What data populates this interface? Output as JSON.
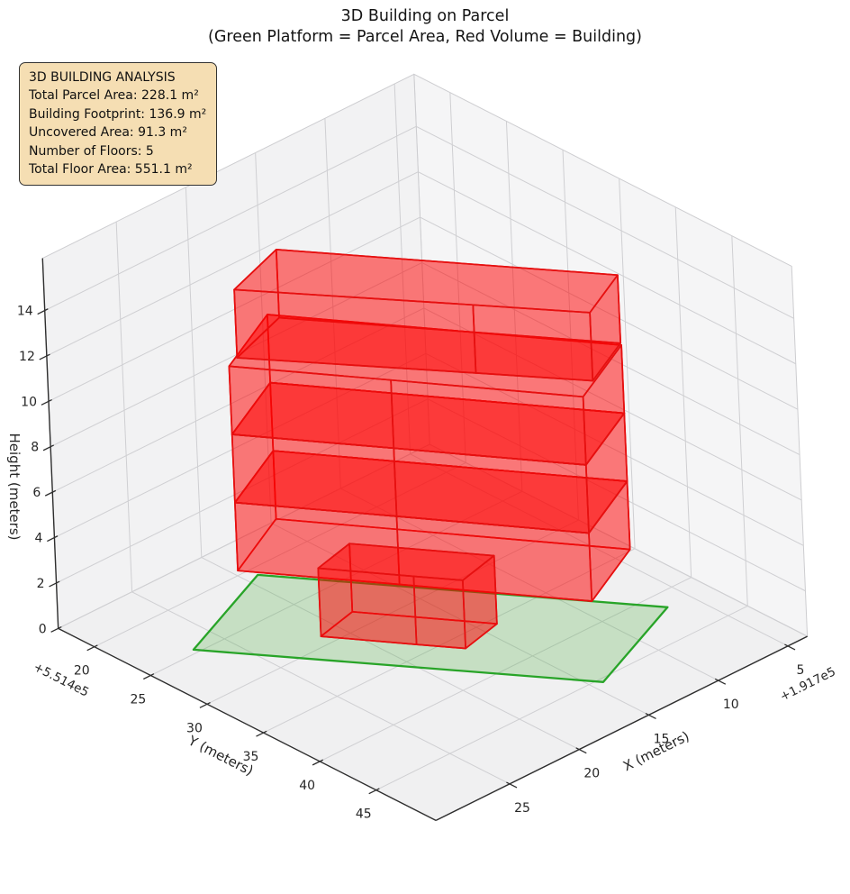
{
  "title": {
    "line1": "3D Building on Parcel",
    "line2": "(Green Platform = Parcel Area, Red Volume = Building)"
  },
  "info_box": {
    "lines": [
      "3D BUILDING ANALYSIS",
      "Total Parcel Area: 228.1 m²",
      "Building Footprint: 136.9 m²",
      "Uncovered Area: 91.3 m²",
      "Number of Floors: 5",
      "Total Floor Area: 551.1 m²"
    ]
  },
  "chart_data": {
    "type": "3d-building-plot",
    "projection": "orthographic, elevated oblique view",
    "axes": {
      "x": {
        "label": "X (meters)",
        "ticks": [
          5,
          10,
          15,
          20,
          25
        ],
        "offset_text": "+1.917e5",
        "range": [
          3.6,
          30.3
        ]
      },
      "y": {
        "label": "Y (meters)",
        "ticks": [
          20,
          25,
          30,
          35,
          40,
          45
        ],
        "offset_text": "+5.514e5",
        "range": [
          16.8,
          50.3
        ]
      },
      "z": {
        "label": "Height (meters)",
        "ticks": [
          0,
          2,
          4,
          6,
          8,
          10,
          12,
          14
        ],
        "range": [
          0,
          16.3
        ]
      }
    },
    "parcel": {
      "z": 0,
      "area_m2": 228.1,
      "polygon": [
        [
          19.2,
          20.8
        ],
        [
          6.6,
          41.6
        ],
        [
          14.3,
          45.4
        ],
        [
          26.9,
          24.6
        ]
      ]
    },
    "building": {
      "footprint_area_m2": 136.9,
      "num_floors": 5,
      "total_floor_area_m2": 551.1,
      "volumes": [
        {
          "name": "floor-1-ground",
          "z0": 0,
          "z1": 3,
          "footprint": [
            [
              18.4,
              28.2
            ],
            [
              21.3,
              29.0
            ],
            [
              18.4,
              33.9
            ],
            [
              16.9,
              36.4
            ],
            [
              14.0,
              35.6
            ]
          ]
        },
        {
          "name": "floor-2",
          "z0": 3,
          "z1": 6,
          "footprint": [
            [
              19.3,
              22.8
            ],
            [
              24.4,
              25.7
            ],
            [
              19.5,
              34.0
            ],
            [
              13.7,
              43.9
            ],
            [
              8.6,
              41.0
            ]
          ]
        },
        {
          "name": "floor-3",
          "z0": 6,
          "z1": 9,
          "footprint": [
            [
              19.3,
              22.8
            ],
            [
              24.4,
              25.7
            ],
            [
              19.5,
              34.0
            ],
            [
              13.7,
              43.9
            ],
            [
              8.6,
              41.0
            ]
          ]
        },
        {
          "name": "floor-4",
          "z0": 9,
          "z1": 12,
          "footprint": [
            [
              19.3,
              22.8
            ],
            [
              24.4,
              25.7
            ],
            [
              19.5,
              34.0
            ],
            [
              13.7,
              43.9
            ],
            [
              8.6,
              41.0
            ]
          ]
        },
        {
          "name": "floor-5-top",
          "z0": 12,
          "z1": 15,
          "footprint": [
            [
              19.1,
              23.6
            ],
            [
              23.5,
              25.3
            ],
            [
              15.9,
              37.1
            ],
            [
              12.2,
              42.9
            ],
            [
              8.5,
              40.8
            ]
          ]
        }
      ]
    },
    "colors": {
      "building_fill": "rgba(255,0,0,0.30)",
      "building_edge": "#e61010",
      "parcel_fill": "rgba(70,170,60,0.25)",
      "parcel_edge": "#28a428",
      "pane_left": "#f2f2f3",
      "pane_right": "#f5f5f6",
      "pane_floor": "#f0f0f1",
      "grid": "#cfcfd2",
      "axis_line": "#2e2e2e",
      "tick_text": "#262626",
      "info_bg": "#f5deb3"
    }
  }
}
